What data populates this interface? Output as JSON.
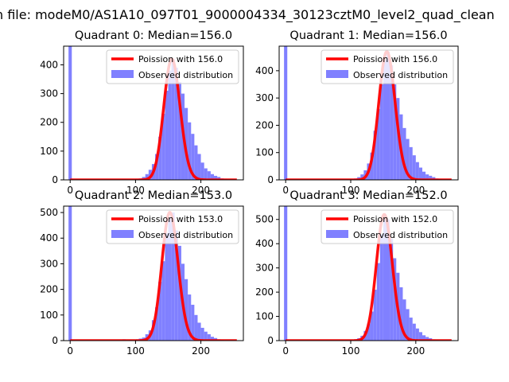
{
  "figure": {
    "suptitle": "n file: modeM0/AS1A10_097T01_9000004334_30123cztM0_level2_quad_clean"
  },
  "colors": {
    "poisson": "#ff0000",
    "observed": "#8080ff"
  },
  "chart_data": [
    {
      "type": "bar",
      "title": "Quadrant 0: Median=156.0",
      "median": 156.0,
      "xlim": [
        -10,
        265
      ],
      "ylim": [
        0,
        465
      ],
      "xticks": [
        0,
        100,
        200
      ],
      "yticks": [
        0,
        100,
        200,
        300,
        400
      ],
      "zero_bin_count": 465,
      "hist_bins": [
        [
          80,
          2
        ],
        [
          100,
          3
        ],
        [
          105,
          5
        ],
        [
          110,
          10
        ],
        [
          115,
          20
        ],
        [
          120,
          35
        ],
        [
          125,
          55
        ],
        [
          130,
          90
        ],
        [
          135,
          150
        ],
        [
          140,
          230
        ],
        [
          145,
          310
        ],
        [
          150,
          380
        ],
        [
          155,
          420
        ],
        [
          160,
          390
        ],
        [
          165,
          340
        ],
        [
          170,
          300
        ],
        [
          175,
          250
        ],
        [
          180,
          200
        ],
        [
          185,
          160
        ],
        [
          190,
          120
        ],
        [
          195,
          90
        ],
        [
          200,
          60
        ],
        [
          205,
          40
        ],
        [
          210,
          30
        ],
        [
          215,
          20
        ],
        [
          220,
          14
        ],
        [
          225,
          10
        ],
        [
          230,
          5
        ],
        [
          235,
          3
        ],
        [
          240,
          1
        ]
      ],
      "legend": [
        "Poission with 156.0",
        "Observed distribution"
      ]
    },
    {
      "type": "bar",
      "title": "Quadrant 1: Median=156.0",
      "median": 156.0,
      "xlim": [
        -10,
        265
      ],
      "ylim": [
        0,
        490
      ],
      "xticks": [
        0,
        100,
        200
      ],
      "yticks": [
        0,
        100,
        200,
        300,
        400
      ],
      "zero_bin_count": 490,
      "hist_bins": [
        [
          85,
          2
        ],
        [
          100,
          3
        ],
        [
          105,
          5
        ],
        [
          110,
          10
        ],
        [
          115,
          20
        ],
        [
          120,
          35
        ],
        [
          125,
          60
        ],
        [
          130,
          100
        ],
        [
          135,
          180
        ],
        [
          140,
          260
        ],
        [
          145,
          350
        ],
        [
          150,
          440
        ],
        [
          155,
          470
        ],
        [
          160,
          420
        ],
        [
          165,
          350
        ],
        [
          170,
          300
        ],
        [
          175,
          240
        ],
        [
          180,
          190
        ],
        [
          185,
          150
        ],
        [
          190,
          120
        ],
        [
          195,
          90
        ],
        [
          200,
          65
        ],
        [
          205,
          45
        ],
        [
          210,
          30
        ],
        [
          215,
          20
        ],
        [
          220,
          15
        ],
        [
          225,
          10
        ],
        [
          230,
          5
        ],
        [
          235,
          3
        ]
      ],
      "legend": [
        "Poission with 156.0",
        "Observed distribution"
      ]
    },
    {
      "type": "bar",
      "title": "Quadrant 2: Median=153.0",
      "median": 153.0,
      "xlim": [
        -10,
        265
      ],
      "ylim": [
        0,
        525
      ],
      "xticks": [
        0,
        100,
        200
      ],
      "yticks": [
        0,
        100,
        200,
        300,
        400,
        500
      ],
      "zero_bin_count": 525,
      "hist_bins": [
        [
          80,
          5
        ],
        [
          90,
          3
        ],
        [
          100,
          5
        ],
        [
          105,
          8
        ],
        [
          110,
          12
        ],
        [
          115,
          25
        ],
        [
          120,
          40
        ],
        [
          125,
          80
        ],
        [
          130,
          130
        ],
        [
          135,
          230
        ],
        [
          140,
          310
        ],
        [
          145,
          420
        ],
        [
          150,
          480
        ],
        [
          155,
          500
        ],
        [
          160,
          430
        ],
        [
          165,
          370
        ],
        [
          170,
          300
        ],
        [
          175,
          240
        ],
        [
          180,
          180
        ],
        [
          185,
          140
        ],
        [
          190,
          100
        ],
        [
          195,
          70
        ],
        [
          200,
          50
        ],
        [
          205,
          35
        ],
        [
          210,
          25
        ],
        [
          215,
          15
        ],
        [
          220,
          10
        ],
        [
          225,
          5
        ],
        [
          230,
          3
        ]
      ],
      "legend": [
        "Poission with 153.0",
        "Observed distribution"
      ]
    },
    {
      "type": "bar",
      "title": "Quadrant 3: Median=152.0",
      "median": 152.0,
      "xlim": [
        -10,
        265
      ],
      "ylim": [
        0,
        555
      ],
      "xticks": [
        0,
        100,
        200
      ],
      "yticks": [
        0,
        100,
        200,
        300,
        400,
        500
      ],
      "zero_bin_count": 555,
      "hist_bins": [
        [
          85,
          2
        ],
        [
          100,
          3
        ],
        [
          105,
          5
        ],
        [
          110,
          10
        ],
        [
          115,
          20
        ],
        [
          120,
          40
        ],
        [
          125,
          70
        ],
        [
          130,
          120
        ],
        [
          135,
          210
        ],
        [
          140,
          320
        ],
        [
          145,
          440
        ],
        [
          150,
          520
        ],
        [
          155,
          500
        ],
        [
          160,
          420
        ],
        [
          165,
          340
        ],
        [
          170,
          280
        ],
        [
          175,
          220
        ],
        [
          180,
          170
        ],
        [
          185,
          130
        ],
        [
          190,
          95
        ],
        [
          195,
          70
        ],
        [
          200,
          50
        ],
        [
          205,
          35
        ],
        [
          210,
          22
        ],
        [
          215,
          15
        ],
        [
          220,
          10
        ],
        [
          225,
          5
        ],
        [
          230,
          3
        ]
      ],
      "legend": [
        "Poission with 152.0",
        "Observed distribution"
      ]
    }
  ]
}
